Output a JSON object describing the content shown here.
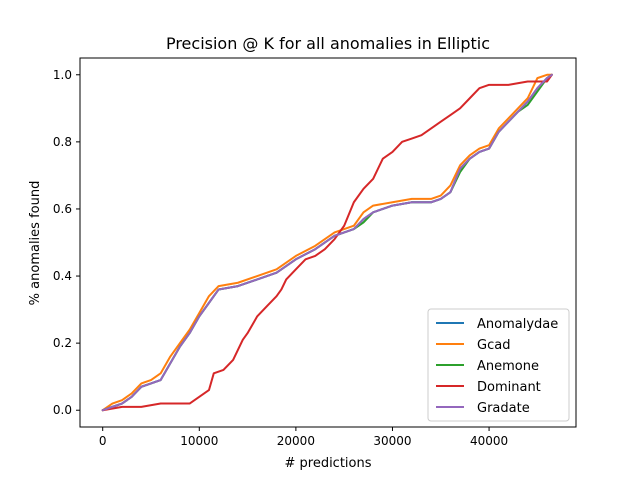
{
  "chart_data": {
    "type": "line",
    "title": "Precision @ K for all anomalies in Elliptic",
    "xlabel": "# predictions",
    "ylabel": "% anomalies found",
    "xlim": [
      -2350,
      49000
    ],
    "ylim": [
      -0.05,
      1.05
    ],
    "x_ticks": [
      0,
      10000,
      20000,
      30000,
      40000
    ],
    "x_tick_labels": [
      "0",
      "10000",
      "20000",
      "30000",
      "40000"
    ],
    "y_ticks": [
      0.0,
      0.2,
      0.4,
      0.6,
      0.8,
      1.0
    ],
    "y_tick_labels": [
      "0.0",
      "0.2",
      "0.4",
      "0.6",
      "0.8",
      "1.0"
    ],
    "grid": false,
    "legend_position": "lower right",
    "series": [
      {
        "name": "Anomalydae",
        "color": "#1f77b4",
        "x": [
          0,
          1000,
          2000,
          3000,
          4000,
          5000,
          6000,
          7000,
          8000,
          9000,
          10000,
          11000,
          12000,
          14000,
          16000,
          18000,
          20000,
          22000,
          24000,
          26000,
          27000,
          28000,
          30000,
          32000,
          34000,
          35000,
          36000,
          37000,
          38000,
          39000,
          40000,
          41000,
          42000,
          43000,
          44000,
          45000,
          46000,
          46500
        ],
        "y": [
          0.0,
          0.01,
          0.02,
          0.04,
          0.07,
          0.08,
          0.09,
          0.14,
          0.19,
          0.23,
          0.28,
          0.32,
          0.36,
          0.37,
          0.39,
          0.41,
          0.45,
          0.48,
          0.52,
          0.54,
          0.57,
          0.59,
          0.61,
          0.62,
          0.62,
          0.63,
          0.65,
          0.72,
          0.75,
          0.77,
          0.78,
          0.83,
          0.86,
          0.89,
          0.92,
          0.96,
          0.99,
          1.0
        ]
      },
      {
        "name": "Gcad",
        "color": "#ff7f0e",
        "x": [
          0,
          1000,
          2000,
          3000,
          4000,
          5000,
          6000,
          7000,
          8000,
          9000,
          10000,
          11000,
          12000,
          14000,
          16000,
          18000,
          20000,
          22000,
          24000,
          26000,
          27000,
          28000,
          30000,
          32000,
          34000,
          35000,
          36000,
          37000,
          38000,
          39000,
          40000,
          41000,
          42000,
          43000,
          44000,
          45000,
          46000,
          46500
        ],
        "y": [
          0.0,
          0.02,
          0.03,
          0.05,
          0.08,
          0.09,
          0.11,
          0.16,
          0.2,
          0.24,
          0.29,
          0.34,
          0.37,
          0.38,
          0.4,
          0.42,
          0.46,
          0.49,
          0.53,
          0.55,
          0.59,
          0.61,
          0.62,
          0.63,
          0.63,
          0.64,
          0.67,
          0.73,
          0.76,
          0.78,
          0.79,
          0.84,
          0.87,
          0.9,
          0.93,
          0.99,
          1.0,
          1.0
        ]
      },
      {
        "name": "Anemone",
        "color": "#2ca02c",
        "x": [
          0,
          1000,
          2000,
          3000,
          4000,
          5000,
          6000,
          7000,
          8000,
          9000,
          10000,
          11000,
          12000,
          14000,
          16000,
          18000,
          20000,
          22000,
          24000,
          26000,
          27000,
          28000,
          30000,
          32000,
          34000,
          35000,
          36000,
          37000,
          38000,
          39000,
          40000,
          41000,
          42000,
          43000,
          44000,
          45000,
          46000,
          46500
        ],
        "y": [
          0.0,
          0.01,
          0.02,
          0.04,
          0.07,
          0.08,
          0.09,
          0.14,
          0.19,
          0.23,
          0.28,
          0.32,
          0.36,
          0.37,
          0.39,
          0.41,
          0.45,
          0.48,
          0.52,
          0.54,
          0.56,
          0.59,
          0.61,
          0.62,
          0.62,
          0.63,
          0.65,
          0.71,
          0.75,
          0.77,
          0.78,
          0.83,
          0.86,
          0.89,
          0.91,
          0.95,
          0.99,
          1.0
        ]
      },
      {
        "name": "Dominant",
        "color": "#d62728",
        "x": [
          0,
          2000,
          4000,
          6000,
          8000,
          9000,
          10000,
          11000,
          11500,
          12500,
          13500,
          14500,
          15000,
          16000,
          17000,
          18000,
          18500,
          19000,
          20000,
          21000,
          22000,
          23000,
          24000,
          25000,
          26000,
          27000,
          28000,
          29000,
          30000,
          31000,
          32000,
          33000,
          34000,
          35000,
          36000,
          37000,
          38000,
          39000,
          40000,
          42000,
          44000,
          46000,
          46500
        ],
        "y": [
          0.0,
          0.01,
          0.01,
          0.02,
          0.02,
          0.02,
          0.04,
          0.06,
          0.11,
          0.12,
          0.15,
          0.21,
          0.23,
          0.28,
          0.31,
          0.34,
          0.36,
          0.39,
          0.42,
          0.45,
          0.46,
          0.48,
          0.51,
          0.55,
          0.62,
          0.66,
          0.69,
          0.75,
          0.77,
          0.8,
          0.81,
          0.82,
          0.84,
          0.86,
          0.88,
          0.9,
          0.93,
          0.96,
          0.97,
          0.97,
          0.98,
          0.98,
          1.0
        ]
      },
      {
        "name": "Gradate",
        "color": "#9467bd",
        "x": [
          0,
          1000,
          2000,
          3000,
          4000,
          5000,
          6000,
          7000,
          8000,
          9000,
          10000,
          11000,
          12000,
          14000,
          16000,
          18000,
          20000,
          22000,
          24000,
          26000,
          27000,
          28000,
          30000,
          32000,
          34000,
          35000,
          36000,
          37000,
          38000,
          39000,
          40000,
          41000,
          42000,
          43000,
          44000,
          45000,
          46000,
          46500
        ],
        "y": [
          0.0,
          0.01,
          0.02,
          0.04,
          0.07,
          0.08,
          0.09,
          0.14,
          0.19,
          0.23,
          0.28,
          0.32,
          0.36,
          0.37,
          0.39,
          0.41,
          0.45,
          0.48,
          0.52,
          0.54,
          0.57,
          0.59,
          0.61,
          0.62,
          0.62,
          0.63,
          0.65,
          0.72,
          0.75,
          0.77,
          0.78,
          0.83,
          0.86,
          0.89,
          0.92,
          0.96,
          0.99,
          1.0
        ]
      }
    ]
  }
}
